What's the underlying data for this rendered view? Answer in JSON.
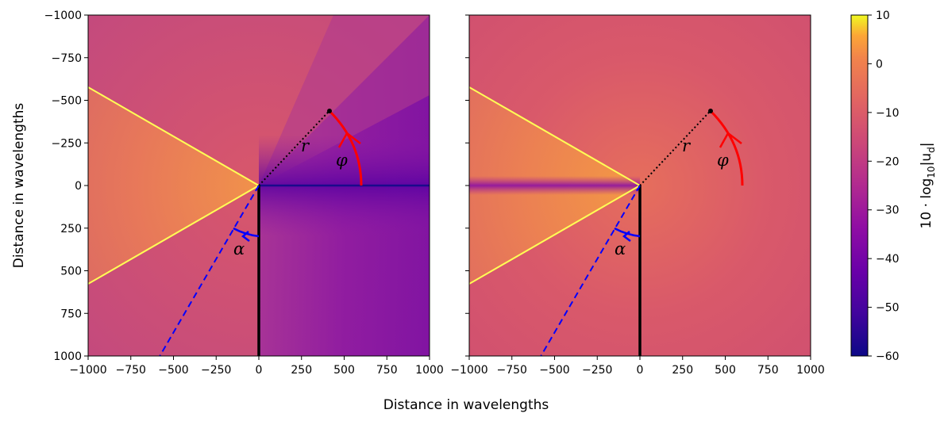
{
  "chart_data": [
    {
      "type": "heatmap",
      "title": "",
      "xlabel": "Distance in wavelengths",
      "ylabel": "Distance in wavelengths",
      "xlim": [
        -1000,
        1000
      ],
      "ylim": [
        -1000,
        1000
      ],
      "xticks": [
        -1000,
        -750,
        -500,
        -250,
        0,
        250,
        500,
        750,
        1000
      ],
      "yticks": [
        -1000,
        -750,
        -500,
        -250,
        0,
        250,
        500,
        750,
        1000
      ],
      "grid": false,
      "lines": [
        {
          "name": "screen",
          "style": "solid",
          "color": "#000000",
          "x": [
            0,
            0
          ],
          "y": [
            0,
            -1000
          ]
        },
        {
          "name": "incident-direction",
          "style": "dashed",
          "color": "#0000ff",
          "x": [
            0,
            -580
          ],
          "y": [
            0,
            -1000
          ]
        },
        {
          "name": "shadow-boundary-upper",
          "style": "solid",
          "color": "#ffff55",
          "x": [
            0,
            -1000
          ],
          "y": [
            0,
            577
          ]
        },
        {
          "name": "shadow-boundary-lower",
          "style": "solid",
          "color": "#ffff55",
          "x": [
            0,
            -1000
          ],
          "y": [
            0,
            -577
          ]
        },
        {
          "name": "radius",
          "style": "dotted",
          "color": "#000000",
          "x": [
            0,
            415
          ],
          "y": [
            0,
            440
          ]
        }
      ],
      "observation_point": {
        "x": 415,
        "y": 440
      },
      "annotations": [
        {
          "text": "r",
          "x": 280,
          "y": 230
        },
        {
          "text": "φ",
          "x": 500,
          "y": 150
        },
        {
          "text": "α",
          "x": -120,
          "y": -370
        }
      ],
      "min_field_line": {
        "y": 0,
        "x_range": [
          0,
          1000
        ]
      }
    },
    {
      "type": "heatmap",
      "title": "",
      "xlabel": "Distance in wavelengths",
      "ylabel": "",
      "xlim": [
        -1000,
        1000
      ],
      "ylim": [
        -1000,
        1000
      ],
      "xticks": [
        -1000,
        -750,
        -500,
        -250,
        0,
        250,
        500,
        750,
        1000
      ],
      "yticks": [
        -1000,
        -750,
        -500,
        -250,
        0,
        250,
        500,
        750,
        1000
      ],
      "ytick_labels_visible": false,
      "grid": false,
      "lines": [
        {
          "name": "screen",
          "style": "solid",
          "color": "#000000",
          "x": [
            0,
            0
          ],
          "y": [
            0,
            -1000
          ]
        },
        {
          "name": "incident-direction",
          "style": "dashed",
          "color": "#0000ff",
          "x": [
            0,
            -580
          ],
          "y": [
            0,
            -1000
          ]
        },
        {
          "name": "shadow-boundary-upper",
          "style": "solid",
          "color": "#ffff55",
          "x": [
            0,
            -1000
          ],
          "y": [
            0,
            577
          ]
        },
        {
          "name": "shadow-boundary-lower",
          "style": "solid",
          "color": "#ffff55",
          "x": [
            0,
            -1000
          ],
          "y": [
            0,
            -577
          ]
        },
        {
          "name": "radius",
          "style": "dotted",
          "color": "#000000",
          "x": [
            0,
            415
          ],
          "y": [
            0,
            440
          ]
        }
      ],
      "observation_point": {
        "x": 415,
        "y": 440
      },
      "annotations": [
        {
          "text": "r",
          "x": 280,
          "y": 230
        },
        {
          "text": "φ",
          "x": 500,
          "y": 150
        },
        {
          "text": "α",
          "x": -120,
          "y": -370
        }
      ],
      "min_field_line": {
        "y": 0,
        "x_range": [
          -1000,
          0
        ]
      }
    }
  ],
  "colorbar": {
    "label": "10 · log₁₀|u_d|",
    "label_main": "10 · log",
    "label_sub": "10",
    "label_tail": "|u",
    "label_sub2": "d",
    "label_end": "|",
    "range": [
      -60,
      10
    ],
    "ticks": [
      10,
      0,
      -10,
      -20,
      -30,
      -40,
      -50,
      -60
    ],
    "tick_labels": [
      "10",
      "0",
      "−10",
      "−20",
      "−30",
      "−40",
      "−50",
      "−60"
    ],
    "colormap": "plasma"
  },
  "shared_xlabel": "Distance in wavelengths",
  "tick_labels": [
    "1000",
    "750",
    "500",
    "250",
    "0",
    "−250",
    "−500",
    "−750",
    "−1000"
  ],
  "xtick_labels": [
    "−1000",
    "−750",
    "−500",
    "−250",
    "0",
    "250",
    "500",
    "750",
    "1000"
  ],
  "colors": {
    "screen": "#000000",
    "incident": "#0000ff",
    "arc": "#ff0000",
    "boundary": "#ffff55"
  }
}
